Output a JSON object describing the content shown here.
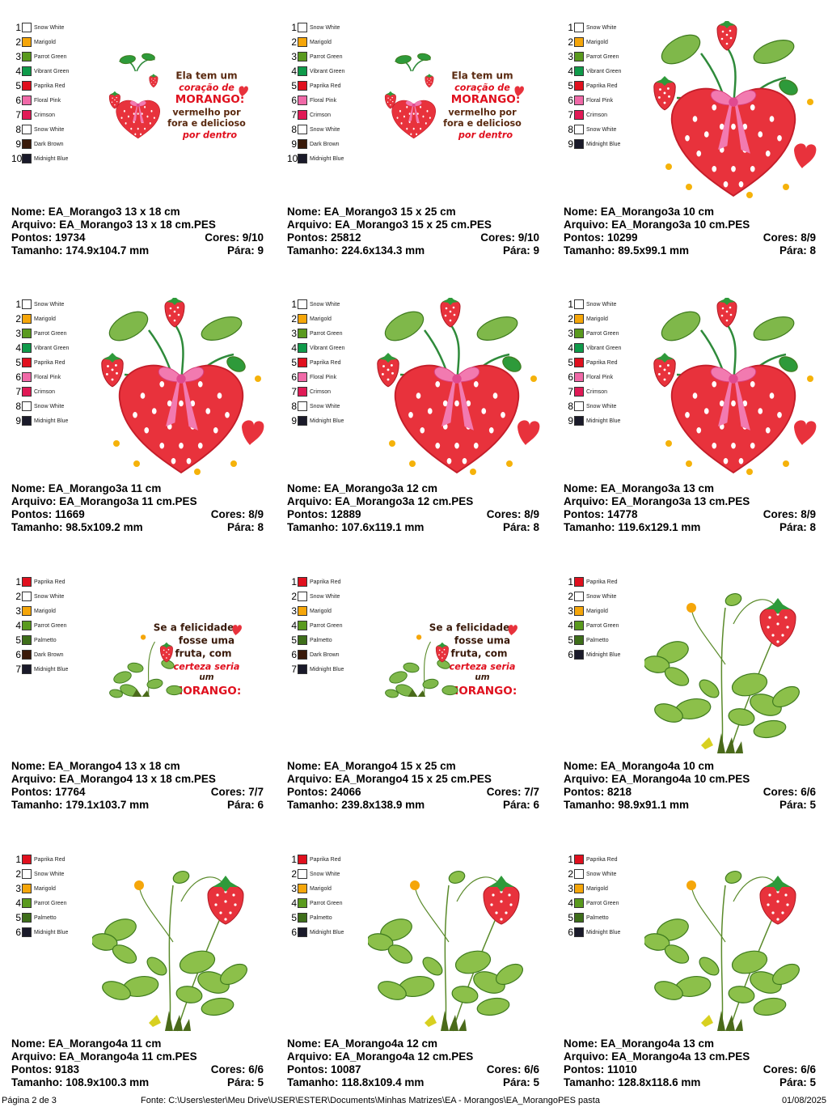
{
  "palettes": {
    "A": [
      [
        "1",
        "Snow White",
        "#ffffff"
      ],
      [
        "2",
        "Marigold",
        "#f5a60a"
      ],
      [
        "3",
        "Parrot Green",
        "#5a9a1e"
      ],
      [
        "4",
        "Vibrant Green",
        "#0f9a4a"
      ],
      [
        "5",
        "Paprika Red",
        "#e0101e"
      ],
      [
        "6",
        "Floral Pink",
        "#f06aa8"
      ],
      [
        "7",
        "Crimson",
        "#e01a56"
      ],
      [
        "8",
        "Snow White",
        "#ffffff"
      ],
      [
        "9",
        "Dark Brown",
        "#3a1a0a"
      ],
      [
        "10",
        "Midnight Blue",
        "#1a1a2a"
      ]
    ],
    "B": [
      [
        "1",
        "Snow White",
        "#ffffff"
      ],
      [
        "2",
        "Marigold",
        "#f5a60a"
      ],
      [
        "3",
        "Parrot Green",
        "#5a9a1e"
      ],
      [
        "4",
        "Vibrant Green",
        "#0f9a4a"
      ],
      [
        "5",
        "Paprika Red",
        "#e0101e"
      ],
      [
        "6",
        "Floral Pink",
        "#f06aa8"
      ],
      [
        "7",
        "Crimson",
        "#e01a56"
      ],
      [
        "8",
        "Snow White",
        "#ffffff"
      ],
      [
        "9",
        "Midnight Blue",
        "#1a1a2a"
      ]
    ],
    "C": [
      [
        "1",
        "Paprika Red",
        "#e0101e"
      ],
      [
        "2",
        "Snow White",
        "#ffffff"
      ],
      [
        "3",
        "Marigold",
        "#f5a60a"
      ],
      [
        "4",
        "Parrot Green",
        "#5a9a1e"
      ],
      [
        "5",
        "Palmetto",
        "#3e6e1a"
      ],
      [
        "6",
        "Dark Brown",
        "#3a1a0a"
      ],
      [
        "7",
        "Midnight Blue",
        "#1a1a2a"
      ]
    ],
    "D": [
      [
        "1",
        "Paprika Red",
        "#e0101e"
      ],
      [
        "2",
        "Snow White",
        "#ffffff"
      ],
      [
        "3",
        "Marigold",
        "#f5a60a"
      ],
      [
        "4",
        "Parrot Green",
        "#5a9a1e"
      ],
      [
        "5",
        "Palmetto",
        "#3e6e1a"
      ],
      [
        "6",
        "Midnight Blue",
        "#1a1a2a"
      ]
    ]
  },
  "text_art": {
    "a": [
      "Ela tem um",
      "coração de",
      "MORANGO:",
      "vermelho por",
      "fora e delicioso",
      "por dentro"
    ],
    "b": [
      "Se a felicidade",
      "fosse uma",
      "fruta, com",
      "certeza seria",
      "um",
      "MORANGO:"
    ]
  },
  "labels": {
    "nome": "Nome:",
    "arquivo": "Arquivo:",
    "pontos": "Pontos:",
    "tamanho": "Tamanho:",
    "cores": "Cores:",
    "para": "Pára:"
  },
  "cards": [
    {
      "palette": "A",
      "art": "text-a",
      "nome": "EA_Morango3 13 x 18 cm",
      "arquivo": "EA_Morango3 13 x 18 cm.PES",
      "pontos": "19734",
      "cores": "9/10",
      "tamanho": "174.9x104.7 mm",
      "para": "9"
    },
    {
      "palette": "A",
      "art": "text-a",
      "nome": "EA_Morango3 15 x 25 cm",
      "arquivo": "EA_Morango3 15 x 25 cm.PES",
      "pontos": "25812",
      "cores": "9/10",
      "tamanho": "224.6x134.3 mm",
      "para": "9"
    },
    {
      "palette": "B",
      "art": "heart",
      "nome": "EA_Morango3a 10 cm",
      "arquivo": "EA_Morango3a 10 cm.PES",
      "pontos": "10299",
      "cores": "8/9",
      "tamanho": "89.5x99.1 mm",
      "para": "8"
    },
    {
      "palette": "B",
      "art": "heart",
      "nome": "EA_Morango3a 11 cm",
      "arquivo": "EA_Morango3a 11 cm.PES",
      "pontos": "11669",
      "cores": "8/9",
      "tamanho": "98.5x109.2 mm",
      "para": "8"
    },
    {
      "palette": "B",
      "art": "heart",
      "nome": "EA_Morango3a 12 cm",
      "arquivo": "EA_Morango3a 12 cm.PES",
      "pontos": "12889",
      "cores": "8/9",
      "tamanho": "107.6x119.1 mm",
      "para": "8"
    },
    {
      "palette": "B",
      "art": "heart",
      "nome": "EA_Morango3a 13 cm",
      "arquivo": "EA_Morango3a 13 cm.PES",
      "pontos": "14778",
      "cores": "8/9",
      "tamanho": "119.6x129.1 mm",
      "para": "8"
    },
    {
      "palette": "C",
      "art": "text-b",
      "nome": "EA_Morango4 13 x 18 cm",
      "arquivo": "EA_Morango4 13 x 18 cm.PES",
      "pontos": "17764",
      "cores": "7/7",
      "tamanho": "179.1x103.7 mm",
      "para": "6"
    },
    {
      "palette": "C",
      "art": "text-b",
      "nome": "EA_Morango4 15 x 25 cm",
      "arquivo": "EA_Morango4 15 x 25 cm.PES",
      "pontos": "24066",
      "cores": "7/7",
      "tamanho": "239.8x138.9 mm",
      "para": "6"
    },
    {
      "palette": "D",
      "art": "plant",
      "nome": "EA_Morango4a 10 cm",
      "arquivo": "EA_Morango4a 10 cm.PES",
      "pontos": "8218",
      "cores": "6/6",
      "tamanho": "98.9x91.1 mm",
      "para": "5"
    },
    {
      "palette": "D",
      "art": "plant",
      "nome": "EA_Morango4a 11 cm",
      "arquivo": "EA_Morango4a 11 cm.PES",
      "pontos": "9183",
      "cores": "6/6",
      "tamanho": "108.9x100.3 mm",
      "para": "5"
    },
    {
      "palette": "D",
      "art": "plant",
      "nome": "EA_Morango4a 12 cm",
      "arquivo": "EA_Morango4a 12 cm.PES",
      "pontos": "10087",
      "cores": "6/6",
      "tamanho": "118.8x109.4 mm",
      "para": "5"
    },
    {
      "palette": "D",
      "art": "plant",
      "nome": "EA_Morango4a 13 cm",
      "arquivo": "EA_Morango4a 13 cm.PES",
      "pontos": "11010",
      "cores": "6/6",
      "tamanho": "128.8x118.6 mm",
      "para": "5"
    }
  ],
  "footer": {
    "page": "Página 2 de 3",
    "source": "Fonte: C:\\Users\\ester\\Meu Drive\\USER\\ESTER\\Documents\\Minhas Matrizes\\EA - Morangos\\EA_MorangoPES pasta",
    "date": "01/08/2025"
  }
}
